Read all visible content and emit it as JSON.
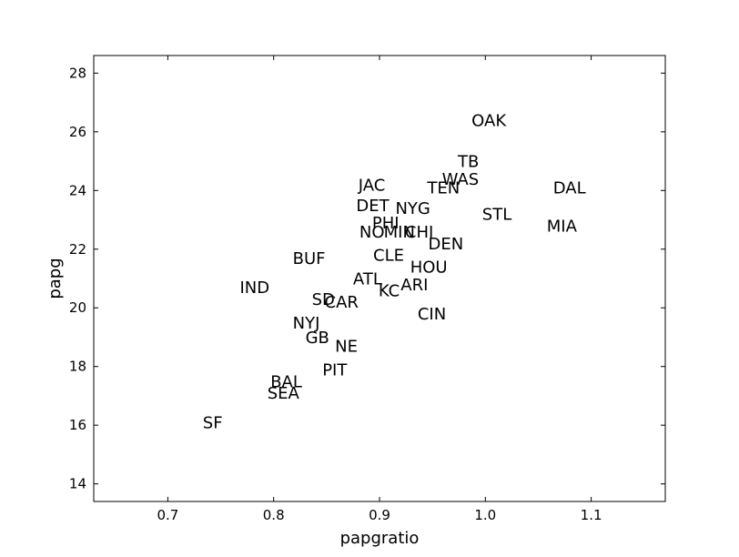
{
  "chart_data": {
    "type": "scatter",
    "xlabel": "papgratio",
    "ylabel": "papg",
    "xlim": [
      0.63,
      1.17
    ],
    "ylim": [
      13.4,
      28.6
    ],
    "xticks": [
      0.7,
      0.8,
      0.9,
      1.0,
      1.1
    ],
    "xtick_labels": [
      "0.7",
      "0.8",
      "0.9",
      "1.0",
      "1.1"
    ],
    "yticks": [
      14,
      16,
      18,
      20,
      22,
      24,
      26,
      28
    ],
    "ytick_labels": [
      "14",
      "16",
      "18",
      "20",
      "22",
      "24",
      "26",
      "28"
    ],
    "grid": false,
    "points": [
      {
        "label": "OAK",
        "x": 0.987,
        "y": 26.2
      },
      {
        "label": "TB",
        "x": 0.974,
        "y": 24.8
      },
      {
        "label": "WAS",
        "x": 0.959,
        "y": 24.2
      },
      {
        "label": "TEN",
        "x": 0.945,
        "y": 23.9
      },
      {
        "label": "DAL",
        "x": 1.064,
        "y": 23.9
      },
      {
        "label": "JAC",
        "x": 0.88,
        "y": 24.0
      },
      {
        "label": "DET",
        "x": 0.878,
        "y": 23.3
      },
      {
        "label": "NYG",
        "x": 0.915,
        "y": 23.2
      },
      {
        "label": "STL",
        "x": 0.997,
        "y": 23.0
      },
      {
        "label": "MIA",
        "x": 1.058,
        "y": 22.6
      },
      {
        "label": "PHI",
        "x": 0.893,
        "y": 22.7
      },
      {
        "label": "NO",
        "x": 0.881,
        "y": 22.4
      },
      {
        "label": "MIN",
        "x": 0.904,
        "y": 22.4
      },
      {
        "label": "CHI",
        "x": 0.924,
        "y": 22.4
      },
      {
        "label": "DEN",
        "x": 0.946,
        "y": 22.0
      },
      {
        "label": "BUF",
        "x": 0.818,
        "y": 21.5
      },
      {
        "label": "CLE",
        "x": 0.894,
        "y": 21.6
      },
      {
        "label": "HOU",
        "x": 0.929,
        "y": 21.2
      },
      {
        "label": "ATL",
        "x": 0.875,
        "y": 20.8
      },
      {
        "label": "ARI",
        "x": 0.92,
        "y": 20.6
      },
      {
        "label": "KC",
        "x": 0.899,
        "y": 20.4
      },
      {
        "label": "IND",
        "x": 0.768,
        "y": 20.5
      },
      {
        "label": "SD",
        "x": 0.836,
        "y": 20.1
      },
      {
        "label": "CAR",
        "x": 0.848,
        "y": 20.0
      },
      {
        "label": "CIN",
        "x": 0.936,
        "y": 19.6
      },
      {
        "label": "NYJ",
        "x": 0.818,
        "y": 19.3
      },
      {
        "label": "GB",
        "x": 0.83,
        "y": 18.8
      },
      {
        "label": "NE",
        "x": 0.858,
        "y": 18.5
      },
      {
        "label": "PIT",
        "x": 0.846,
        "y": 17.7
      },
      {
        "label": "BAL",
        "x": 0.797,
        "y": 17.3
      },
      {
        "label": "SEA",
        "x": 0.794,
        "y": 16.9
      },
      {
        "label": "SF",
        "x": 0.733,
        "y": 15.9
      }
    ]
  }
}
